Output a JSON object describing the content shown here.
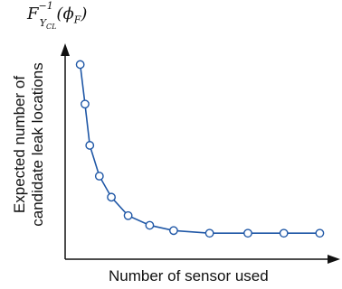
{
  "chart_data": {
    "type": "line",
    "title": "",
    "corner_label": "F⁻¹Υᴄʟ(ϕF)",
    "corner_label_parts": {
      "main": "F",
      "sup": "−1",
      "sub_main": "Υ",
      "sub_sub": "CL",
      "paren_open": "(",
      "arg_main": "ϕ",
      "arg_sub": "F",
      "paren_close": ")"
    },
    "xlabel": "Number of sensor used",
    "ylabel_lines": [
      "Expected number of",
      "candidate leak locations"
    ],
    "grid": false,
    "legend": "none",
    "xlim": [
      0,
      10.5
    ],
    "ylim": [
      0,
      1.1
    ],
    "series": [
      {
        "x": [
          0.1,
          0.3,
          0.5,
          0.9,
          1.4,
          2.1,
          3.0,
          4.0,
          5.5,
          7.1,
          8.6,
          10.1
        ],
        "y": [
          1.0,
          0.775,
          0.54,
          0.365,
          0.245,
          0.14,
          0.085,
          0.055,
          0.04,
          0.04,
          0.04,
          0.04
        ]
      }
    ],
    "colors": {
      "line": "#1f57a6",
      "marker_fill": "#ffffff",
      "axis": "#111111"
    }
  }
}
